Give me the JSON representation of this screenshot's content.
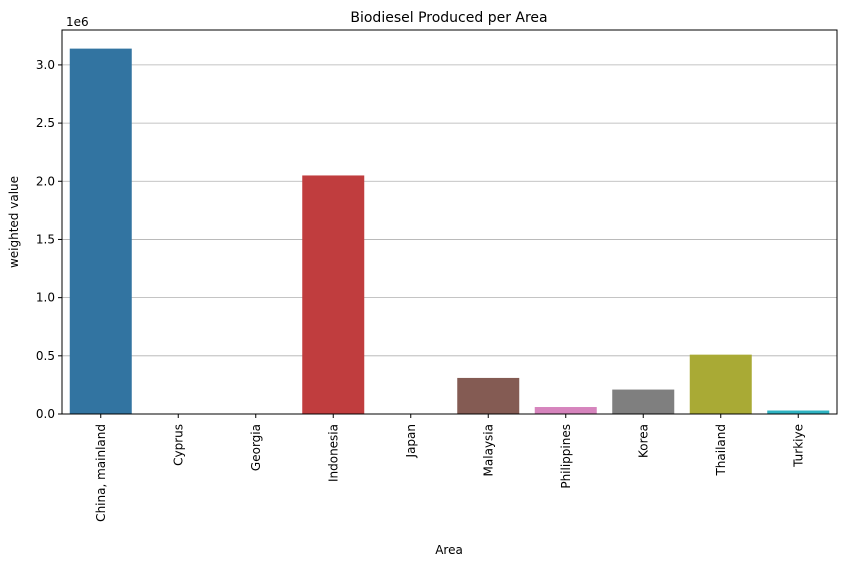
{
  "chart_data": {
    "type": "bar",
    "title": "Biodiesel Produced per Area",
    "xlabel": "Area",
    "ylabel": "weighted value",
    "offset_label": "1e6",
    "categories": [
      "China, mainland",
      "Cyprus",
      "Georgia",
      "Indonesia",
      "Japan",
      "Malaysia",
      "Philippines",
      "Korea",
      "Thailand",
      "Turkiye"
    ],
    "values": [
      3140000,
      0,
      0,
      2050000,
      0,
      310000,
      60000,
      210000,
      510000,
      30000
    ],
    "colors": [
      "#3274a1",
      "#e1812c",
      "#3a923a",
      "#c03d3e",
      "#9372b2",
      "#845b53",
      "#d684bd",
      "#7f7f7f",
      "#a9aa35",
      "#2eb3c2"
    ],
    "ylim": [
      0,
      3300000
    ],
    "yticks": [
      0,
      500000,
      1000000,
      1500000,
      2000000,
      2500000,
      3000000
    ],
    "ytick_labels": [
      "0.0",
      "0.5",
      "1.0",
      "1.5",
      "2.0",
      "2.5",
      "3.0"
    ],
    "grid": "y"
  }
}
